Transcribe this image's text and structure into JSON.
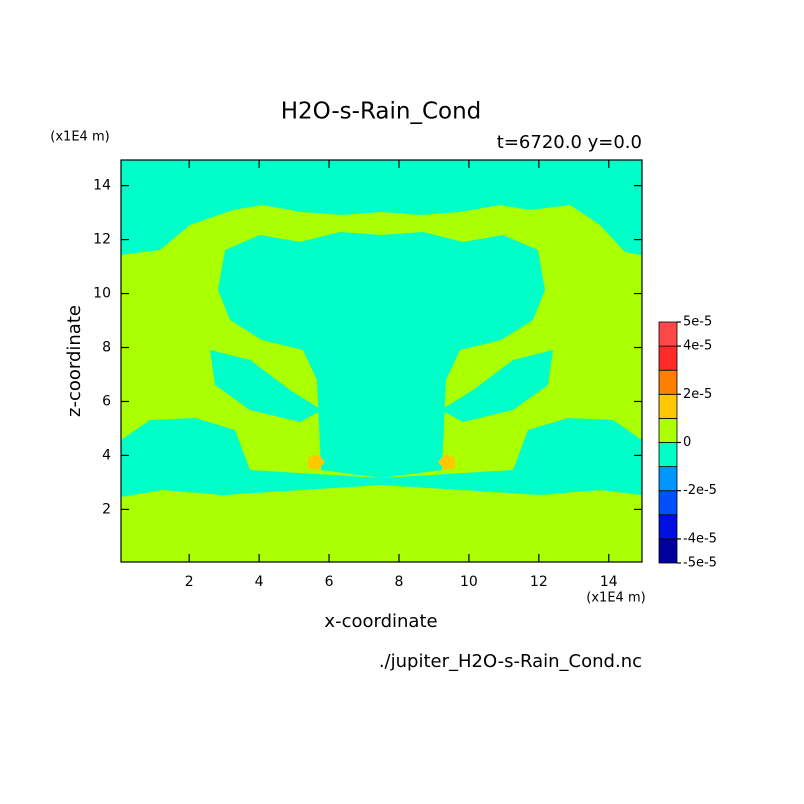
{
  "chart_data": {
    "type": "contour",
    "title": "H2O-s-Rain_Cond",
    "subtitle": "t=6720.0 y=0.0",
    "x_label": "x-coordinate",
    "y_label": "z-coordinate",
    "x_unit": "(x1E4 m)",
    "y_unit": "(x1E4 m)",
    "source": "./jupiter_H2O-s-Rain_Cond.nc",
    "xlim": [
      0.05,
      14.95
    ],
    "ylim": [
      0.05,
      14.95
    ],
    "xticks": [
      2,
      4,
      6,
      8,
      10,
      12,
      14
    ],
    "yticks": [
      2,
      4,
      6,
      8,
      10,
      12,
      14
    ],
    "colorbar": {
      "levels": [
        -5e-05,
        -4e-05,
        -3e-05,
        -2e-05,
        -1e-05,
        0,
        1e-05,
        2e-05,
        3e-05,
        4e-05,
        5e-05
      ],
      "colors": [
        "#00009e",
        "#0010e0",
        "#0050ff",
        "#0096ff",
        "#00ffc8",
        "#aaff00",
        "#ffc800",
        "#ff8000",
        "#ff2a2a",
        "#ff4848"
      ],
      "ticks": [
        {
          "value": 5e-05,
          "label": "5e-5"
        },
        {
          "value": 4e-05,
          "label": "4e-5"
        },
        {
          "value": 2e-05,
          "label": "2e-5"
        },
        0,
        {
          "value": -2e-05,
          "label": "-2e-5"
        },
        {
          "value": -4e-05,
          "label": "-4e-5"
        },
        {
          "value": -5e-05,
          "label": "-5e-5"
        }
      ]
    }
  }
}
